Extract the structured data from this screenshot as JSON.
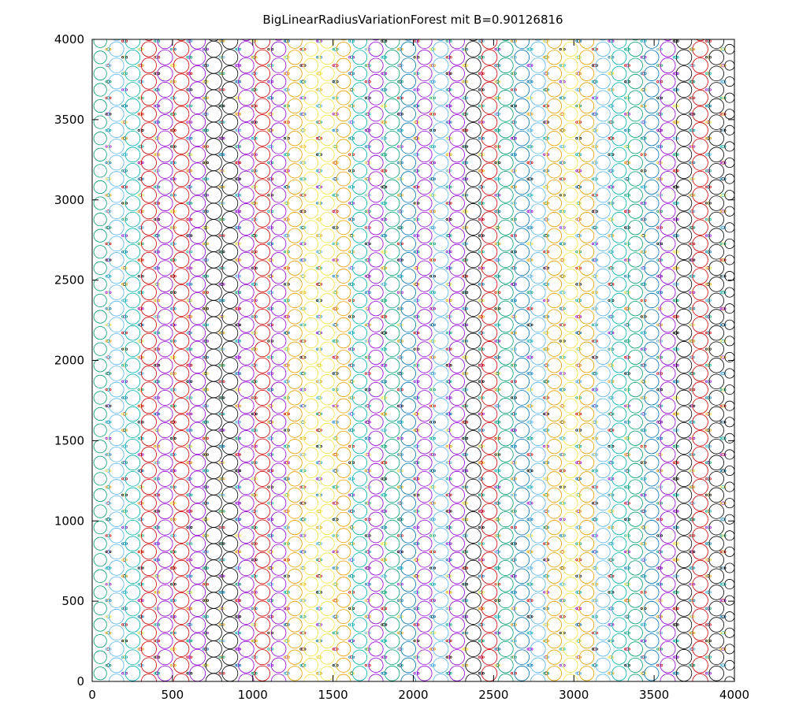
{
  "chart_data": {
    "type": "scatter",
    "title": "BigLinearRadiusVariationForest mit B=0.90126816",
    "xlabel": "",
    "ylabel": "",
    "xlim": [
      0,
      4000
    ],
    "ylim": [
      0,
      4000
    ],
    "xticks": [
      "0",
      "500",
      "1000",
      "1500",
      "2000",
      "2500",
      "3000",
      "3500",
      "4000"
    ],
    "yticks": [
      "0",
      "500",
      "1000",
      "1500",
      "2000",
      "2500",
      "3000",
      "3500",
      "4000"
    ],
    "grid": false,
    "legend": "none",
    "marker": "open-circle",
    "palette": [
      "#000000",
      "#cc0000",
      "#009e73",
      "#56b4e9",
      "#e69f00",
      "#f0e442",
      "#0072b2",
      "#9400d3",
      "#00b0b0"
    ],
    "lattice": {
      "spacing_x": 101,
      "spacing_y": 101,
      "description": "hexagonal packing of large circles with tiny circles filling gaps"
    },
    "columns": [
      {
        "x": 50,
        "r": 40,
        "color": "#009e73"
      },
      {
        "x": 151,
        "r": 46,
        "color": "#56b4e9"
      },
      {
        "x": 252,
        "r": 46,
        "color": "#00b0b0"
      },
      {
        "x": 353,
        "r": 47,
        "color": "#cc0000"
      },
      {
        "x": 454,
        "r": 47,
        "color": "#9400d3"
      },
      {
        "x": 555,
        "r": 48,
        "color": "#cc0000"
      },
      {
        "x": 656,
        "r": 49,
        "color": "#9400d3"
      },
      {
        "x": 757,
        "r": 50,
        "color": "#000000"
      },
      {
        "x": 858,
        "r": 49,
        "color": "#000000"
      },
      {
        "x": 959,
        "r": 48,
        "color": "#9400d3"
      },
      {
        "x": 1060,
        "r": 47,
        "color": "#cc0000"
      },
      {
        "x": 1161,
        "r": 46,
        "color": "#9400d3"
      },
      {
        "x": 1262,
        "r": 45,
        "color": "#e69f00"
      },
      {
        "x": 1363,
        "r": 44,
        "color": "#f0e442"
      },
      {
        "x": 1464,
        "r": 44,
        "color": "#f0e442"
      },
      {
        "x": 1565,
        "r": 44,
        "color": "#e69f00"
      },
      {
        "x": 1666,
        "r": 45,
        "color": "#00b0b0"
      },
      {
        "x": 1767,
        "r": 45,
        "color": "#9400d3"
      },
      {
        "x": 1868,
        "r": 46,
        "color": "#009e73"
      },
      {
        "x": 1969,
        "r": 46,
        "color": "#0072b2"
      },
      {
        "x": 2070,
        "r": 46,
        "color": "#9400d3"
      },
      {
        "x": 2171,
        "r": 47,
        "color": "#56b4e9"
      },
      {
        "x": 2272,
        "r": 47,
        "color": "#9400d3"
      },
      {
        "x": 2373,
        "r": 48,
        "color": "#000000"
      },
      {
        "x": 2474,
        "r": 48,
        "color": "#cc0000"
      },
      {
        "x": 2575,
        "r": 47,
        "color": "#009e73"
      },
      {
        "x": 2676,
        "r": 46,
        "color": "#0072b2"
      },
      {
        "x": 2777,
        "r": 46,
        "color": "#56b4e9"
      },
      {
        "x": 2878,
        "r": 45,
        "color": "#e69f00"
      },
      {
        "x": 2979,
        "r": 45,
        "color": "#f0e442"
      },
      {
        "x": 3080,
        "r": 45,
        "color": "#e69f00"
      },
      {
        "x": 3181,
        "r": 45,
        "color": "#56b4e9"
      },
      {
        "x": 3282,
        "r": 45,
        "color": "#00b0b0"
      },
      {
        "x": 3383,
        "r": 45,
        "color": "#009e73"
      },
      {
        "x": 3484,
        "r": 45,
        "color": "#0072b2"
      },
      {
        "x": 3585,
        "r": 47,
        "color": "#9400d3"
      },
      {
        "x": 3686,
        "r": 48,
        "color": "#000000"
      },
      {
        "x": 3787,
        "r": 48,
        "color": "#cc0000"
      },
      {
        "x": 3888,
        "r": 46,
        "color": "#000000"
      },
      {
        "x": 3970,
        "r": 30,
        "color": "#000000"
      }
    ]
  }
}
